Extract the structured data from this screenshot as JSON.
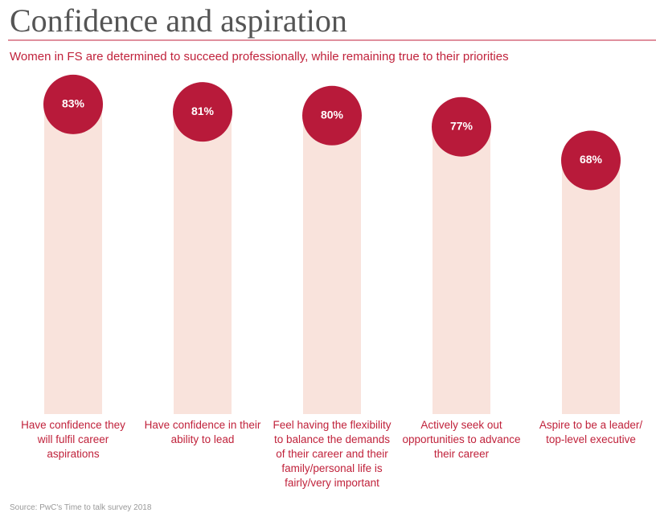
{
  "chart_data": {
    "type": "bar",
    "title": "Confidence and aspiration",
    "subtitle": "Women in FS are determined to succeed professionally, while remaining true to their priorities",
    "source": "Source: PwC's Time to talk survey 2018",
    "categories": [
      "Have confidence they will fulfil career aspirations",
      "Have confidence in their ability to lead",
      "Feel having the flexibility to balance the demands of their career and their family/personal life is fairly/very important",
      "Actively seek out opportunities to advance their career",
      "Aspire to be a leader/ top-level executive"
    ],
    "values": [
      83,
      81,
      80,
      77,
      68
    ],
    "value_labels": [
      "83%",
      "81%",
      "80%",
      "77%",
      "68%"
    ],
    "ylim": [
      0,
      100
    ],
    "color": "#f9e3dc",
    "marker_color": "#b81a3a"
  }
}
